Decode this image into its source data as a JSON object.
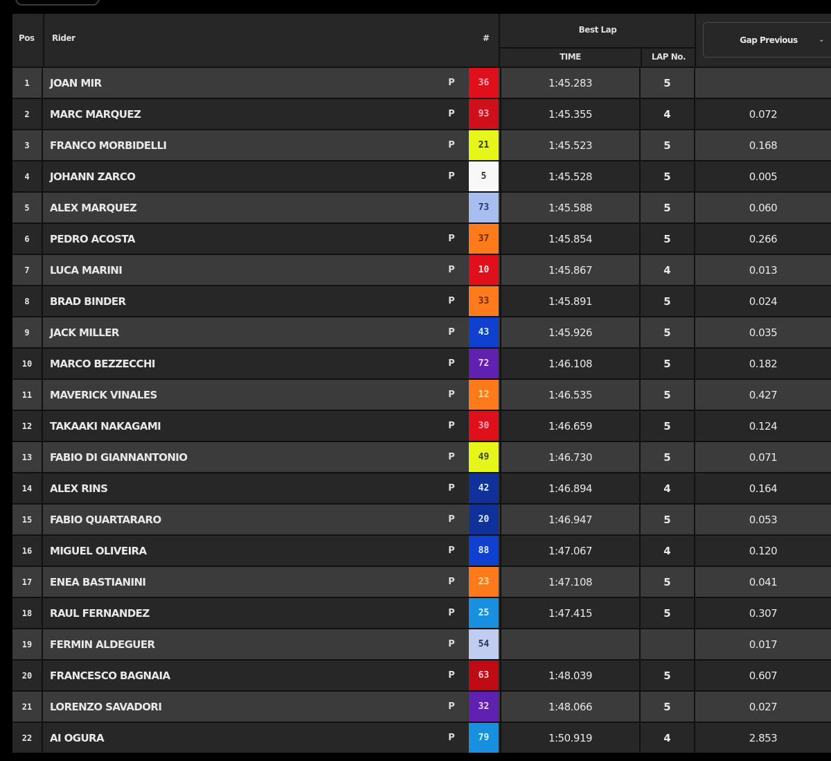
{
  "header": {
    "pos": "Pos",
    "rider": "Rider",
    "number": "#",
    "best_lap": "Best Lap",
    "time": "TIME",
    "lap_no": "LAP No.",
    "gap_select": "Gap Previous"
  },
  "rows": [
    {
      "pos": "1",
      "rider": "JOAN MIR",
      "tyre": "P",
      "number": "36",
      "bg": "#e0101a",
      "fg": "#ffb0c0",
      "time": "1:45.283",
      "lap": "5",
      "gap": ""
    },
    {
      "pos": "2",
      "rider": "MARC MARQUEZ",
      "tyre": "P",
      "number": "93",
      "bg": "#d0101a",
      "fg": "#ffb0c0",
      "time": "1:45.355",
      "lap": "4",
      "gap": "0.072"
    },
    {
      "pos": "3",
      "rider": "FRANCO MORBIDELLI",
      "tyre": "P",
      "number": "21",
      "bg": "#e6f51a",
      "fg": "#2a3a10",
      "time": "1:45.523",
      "lap": "5",
      "gap": "0.168"
    },
    {
      "pos": "4",
      "rider": "JOHANN ZARCO",
      "tyre": "P",
      "number": "5",
      "bg": "#f8f8f8",
      "fg": "#333",
      "time": "1:45.528",
      "lap": "5",
      "gap": "0.005"
    },
    {
      "pos": "5",
      "rider": "ALEX MARQUEZ",
      "tyre": "",
      "number": "73",
      "bg": "#a8bef0",
      "fg": "#2a3a70",
      "time": "1:45.588",
      "lap": "5",
      "gap": "0.060"
    },
    {
      "pos": "6",
      "rider": "PEDRO ACOSTA",
      "tyre": "P",
      "number": "37",
      "bg": "#ff7a1a",
      "fg": "#6a2a10",
      "time": "1:45.854",
      "lap": "5",
      "gap": "0.266"
    },
    {
      "pos": "7",
      "rider": "LUCA MARINI",
      "tyre": "P",
      "number": "10",
      "bg": "#e0101a",
      "fg": "#ffe0e8",
      "time": "1:45.867",
      "lap": "4",
      "gap": "0.013"
    },
    {
      "pos": "8",
      "rider": "BRAD BINDER",
      "tyre": "P",
      "number": "33",
      "bg": "#ff7a1a",
      "fg": "#6a2a10",
      "time": "1:45.891",
      "lap": "5",
      "gap": "0.024"
    },
    {
      "pos": "9",
      "rider": "JACK MILLER",
      "tyre": "P",
      "number": "43",
      "bg": "#1040d0",
      "fg": "#d0f0ff",
      "time": "1:45.926",
      "lap": "5",
      "gap": "0.035"
    },
    {
      "pos": "10",
      "rider": "MARCO BEZZECCHI",
      "tyre": "P",
      "number": "72",
      "bg": "#6020b0",
      "fg": "#f0d0ff",
      "time": "1:46.108",
      "lap": "5",
      "gap": "0.182"
    },
    {
      "pos": "11",
      "rider": "MAVERICK VINALES",
      "tyre": "P",
      "number": "12",
      "bg": "#ff7a1a",
      "fg": "#ffe090",
      "time": "1:46.535",
      "lap": "5",
      "gap": "0.427"
    },
    {
      "pos": "12",
      "rider": "TAKAAKI NAKAGAMI",
      "tyre": "P",
      "number": "30",
      "bg": "#e0101a",
      "fg": "#ffb0c0",
      "time": "1:46.659",
      "lap": "5",
      "gap": "0.124"
    },
    {
      "pos": "13",
      "rider": "FABIO DI GIANNANTONIO",
      "tyre": "P",
      "number": "49",
      "bg": "#e6f51a",
      "fg": "#3a4a10",
      "time": "1:46.730",
      "lap": "5",
      "gap": "0.071"
    },
    {
      "pos": "14",
      "rider": "ALEX RINS",
      "tyre": "P",
      "number": "42",
      "bg": "#10309a",
      "fg": "#e0f0ff",
      "time": "1:46.894",
      "lap": "4",
      "gap": "0.164"
    },
    {
      "pos": "15",
      "rider": "FABIO QUARTARARO",
      "tyre": "P",
      "number": "20",
      "bg": "#10309a",
      "fg": "#e0f0ff",
      "time": "1:46.947",
      "lap": "5",
      "gap": "0.053"
    },
    {
      "pos": "16",
      "rider": "MIGUEL OLIVEIRA",
      "tyre": "P",
      "number": "88",
      "bg": "#1040d0",
      "fg": "#e0f0ff",
      "time": "1:47.067",
      "lap": "4",
      "gap": "0.120"
    },
    {
      "pos": "17",
      "rider": "ENEA BASTIANINI",
      "tyre": "P",
      "number": "23",
      "bg": "#ff7a1a",
      "fg": "#ffe0a0",
      "time": "1:47.108",
      "lap": "5",
      "gap": "0.041"
    },
    {
      "pos": "18",
      "rider": "RAUL FERNANDEZ",
      "tyre": "P",
      "number": "25",
      "bg": "#1890e0",
      "fg": "#d0f8ff",
      "time": "1:47.415",
      "lap": "5",
      "gap": "0.307"
    },
    {
      "pos": "19",
      "rider": "FERMIN ALDEGUER",
      "tyre": "P",
      "number": "54",
      "bg": "#c0ccf0",
      "fg": "#2a3060",
      "time": "",
      "lap": "",
      "gap": "0.017"
    },
    {
      "pos": "20",
      "rider": "FRANCESCO BAGNAIA",
      "tyre": "P",
      "number": "63",
      "bg": "#c00a14",
      "fg": "#ffd0d8",
      "time": "1:48.039",
      "lap": "5",
      "gap": "0.607"
    },
    {
      "pos": "21",
      "rider": "LORENZO SAVADORI",
      "tyre": "P",
      "number": "32",
      "bg": "#6020b0",
      "fg": "#f0d0ff",
      "time": "1:48.066",
      "lap": "5",
      "gap": "0.027"
    },
    {
      "pos": "22",
      "rider": "AI OGURA",
      "tyre": "P",
      "number": "79",
      "bg": "#1890e0",
      "fg": "#d0f8ff",
      "time": "1:50.919",
      "lap": "4",
      "gap": "2.853"
    }
  ]
}
